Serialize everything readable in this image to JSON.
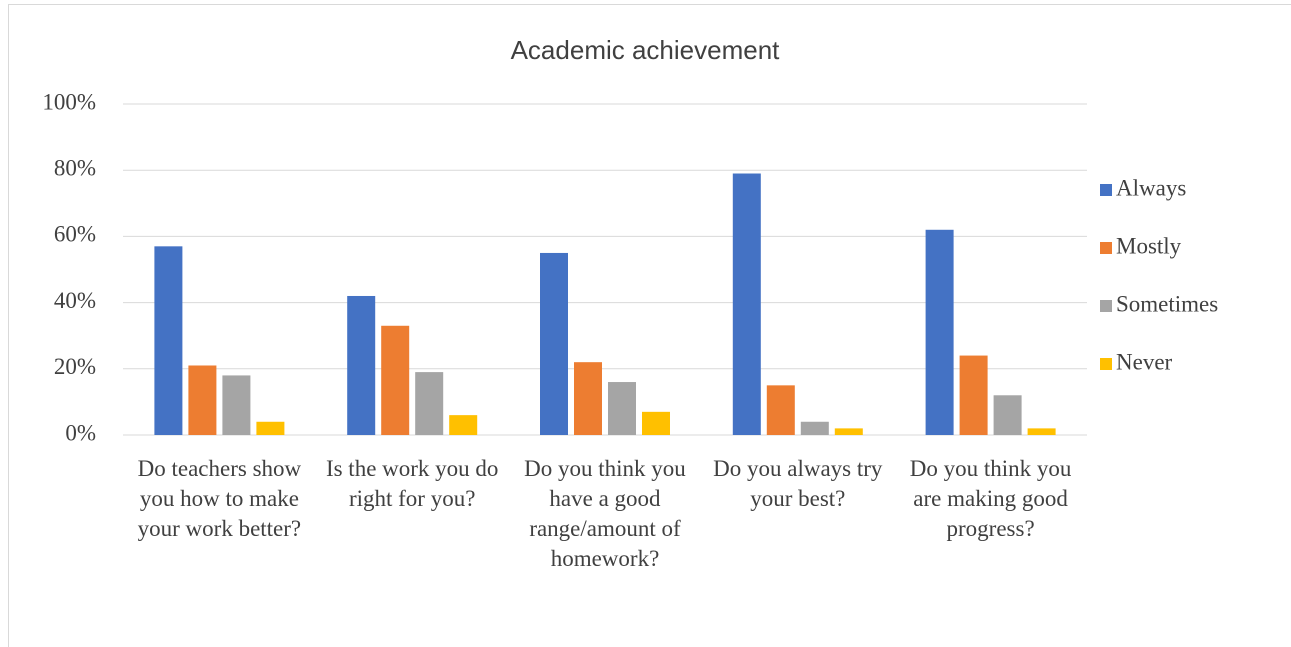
{
  "chart_data": {
    "type": "bar",
    "title": "Academic achievement",
    "categories": [
      "Do teachers show you how to make your work better?",
      "Is the work you do right for you?",
      "Do you think you have a good range/amount of homework?",
      "Do you always try your best?",
      "Do you think you are making good progress?"
    ],
    "series": [
      {
        "name": "Always",
        "color": "#4472c4",
        "values": [
          57,
          42,
          55,
          79,
          62
        ]
      },
      {
        "name": "Mostly",
        "color": "#ed7d31",
        "values": [
          21,
          33,
          22,
          15,
          24
        ]
      },
      {
        "name": "Sometimes",
        "color": "#a5a5a5",
        "values": [
          18,
          19,
          16,
          4,
          12
        ]
      },
      {
        "name": "Never",
        "color": "#ffc000",
        "values": [
          4,
          6,
          7,
          2,
          2
        ]
      }
    ],
    "ylim": [
      0,
      100
    ],
    "yticks": [
      {
        "value": 0,
        "label": "0%"
      },
      {
        "value": 20,
        "label": "20%"
      },
      {
        "value": 40,
        "label": "40%"
      },
      {
        "value": 60,
        "label": "60%"
      },
      {
        "value": 80,
        "label": "80%"
      },
      {
        "value": 100,
        "label": "100%"
      }
    ],
    "grid": true,
    "legend": "right"
  }
}
